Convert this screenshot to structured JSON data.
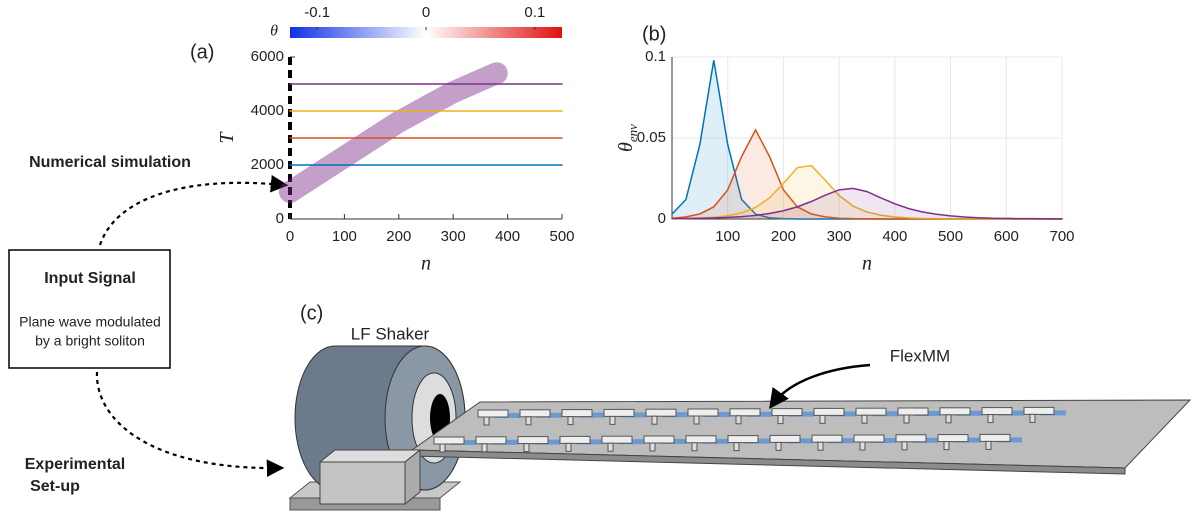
{
  "chart_data": [
    {
      "type": "line",
      "panel_label": "(a)",
      "xlabel": "n",
      "ylabel": "T",
      "xlim": [
        0,
        500
      ],
      "xticks": [
        0,
        100,
        200,
        300,
        400,
        500
      ],
      "ylim": [
        0,
        6000
      ],
      "yticks": [
        0,
        2000,
        4000,
        6000
      ],
      "colorbar": {
        "label": "θ",
        "lim": [
          -0.125,
          0.125
        ],
        "ticks": [
          -0.1,
          0,
          0.1
        ],
        "colors": [
          "#1030e8",
          "#ffffff",
          "#e01010"
        ]
      },
      "series": [
        {
          "style": "band",
          "color": "#7b2a8a",
          "x": [
            0,
            100,
            200,
            300,
            380
          ],
          "values": [
            1000,
            2300,
            3600,
            4700,
            5400
          ]
        },
        {
          "color": "#0072bd",
          "x": [
            0,
            500
          ],
          "values": [
            2000,
            2000
          ]
        },
        {
          "color": "#d95319",
          "x": [
            0,
            500
          ],
          "values": [
            3000,
            3000
          ]
        },
        {
          "color": "#edb120",
          "x": [
            0,
            500
          ],
          "values": [
            4000,
            4000
          ]
        },
        {
          "color": "#7e2f8e",
          "x": [
            0,
            500
          ],
          "values": [
            5000,
            5000
          ]
        }
      ]
    },
    {
      "type": "area",
      "panel_label": "(b)",
      "xlabel": "n",
      "ylabel": "θ",
      "ylabel_sub": "env",
      "grid": true,
      "xlim": [
        0,
        700
      ],
      "xticks": [
        100,
        200,
        300,
        400,
        500,
        600,
        700
      ],
      "ylim": [
        0,
        0.1
      ],
      "yticks": [
        0,
        0.05,
        0.1
      ],
      "x": [
        0,
        25,
        50,
        75,
        100,
        125,
        150,
        175,
        200,
        225,
        250,
        275,
        300,
        325,
        350,
        375,
        400,
        425,
        450,
        475,
        500,
        525,
        550,
        575,
        600,
        625,
        650,
        675,
        700
      ],
      "series": [
        {
          "color": "#0072bd",
          "values": [
            0.003,
            0.012,
            0.046,
            0.098,
            0.046,
            0.012,
            0.003,
            0.0007,
            0.0002,
            0,
            0,
            0,
            0,
            0,
            0,
            0,
            0,
            0,
            0,
            0,
            0,
            0,
            0,
            0,
            0,
            0,
            0,
            0,
            0
          ]
        },
        {
          "color": "#d95319",
          "values": [
            0.0005,
            0.0013,
            0.0031,
            0.0075,
            0.018,
            0.0386,
            0.055,
            0.0386,
            0.018,
            0.0075,
            0.0031,
            0.0013,
            0.0005,
            0.0002,
            0.0001,
            0,
            0,
            0,
            0,
            0,
            0,
            0,
            0,
            0,
            0,
            0,
            0,
            0,
            0
          ]
        },
        {
          "color": "#edb120",
          "values": [
            0.0002,
            0.0003,
            0.0006,
            0.0011,
            0.002,
            0.0038,
            0.0071,
            0.013,
            0.022,
            0.0317,
            0.033,
            0.024,
            0.0145,
            0.008,
            0.0043,
            0.0023,
            0.0012,
            0.0006,
            0.0003,
            0.0002,
            0.0001,
            0,
            0,
            0,
            0,
            0,
            0,
            0,
            0
          ]
        },
        {
          "color": "#7e2f8e",
          "values": [
            0.0002,
            0.0003,
            0.0004,
            0.0006,
            0.001,
            0.0015,
            0.0022,
            0.0034,
            0.0051,
            0.0075,
            0.0108,
            0.0147,
            0.018,
            0.0189,
            0.0169,
            0.013,
            0.0094,
            0.0064,
            0.0043,
            0.0029,
            0.0019,
            0.0012,
            0.0008,
            0.0005,
            0.0004,
            0.0002,
            0.0002,
            0.0001,
            0.0001
          ]
        }
      ]
    }
  ],
  "diagram": {
    "numerical": "Numerical simulation",
    "input_title": "Input Signal",
    "input_text": [
      "Plane wave modulated",
      "by a bright soliton"
    ],
    "experimental": [
      "Experimental",
      "Set-up"
    ],
    "panel_c": "(c)",
    "shaker": "LF Shaker",
    "flexmm": "FlexMM"
  }
}
